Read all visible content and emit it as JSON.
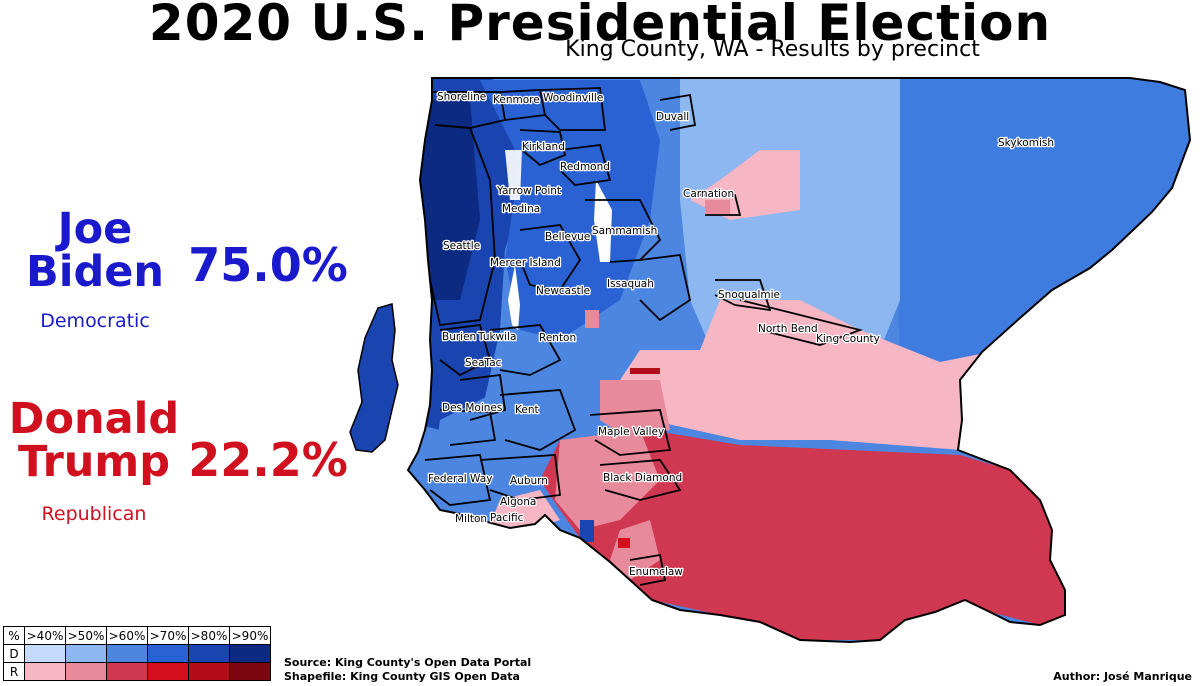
{
  "title": "2020 U.S. Presidential Election",
  "subtitle": "King County, WA - Results by precinct",
  "candidates": {
    "biden": {
      "name": "Joe Biden",
      "first": "Joe",
      "last": "Biden",
      "party": "Democratic",
      "pct": "75.0%",
      "color": "#1a1acc"
    },
    "trump": {
      "name": "Donald Trump",
      "first": "Donald",
      "last": "Trump",
      "party": "Republican",
      "pct": "22.2%",
      "color": "#d0101e"
    }
  },
  "places": [
    "Shoreline",
    "Kenmore",
    "Woodinville",
    "Duvall",
    "Kirkland",
    "Redmond",
    "Skykomish",
    "Carnation",
    "Yarrow Point",
    "Medina",
    "Seattle",
    "Sammamish",
    "Bellevue",
    "Mercer Island",
    "Issaquah",
    "Newcastle",
    "Snoqualmie",
    "North Bend",
    "King County",
    "Burien",
    "Tukwila",
    "Renton",
    "SeaTac",
    "Des Moines",
    "Kent",
    "Maple Valley",
    "Federal Way",
    "Auburn",
    "Black Diamond",
    "Algona",
    "Milton",
    "Pacific",
    "Enumclaw"
  ],
  "legend": {
    "header": "%",
    "thresholds": [
      ">40%",
      ">50%",
      ">60%",
      ">70%",
      ">80%",
      ">90%"
    ],
    "rows": [
      {
        "label": "D",
        "colors": [
          "#c6dbfb",
          "#8db7f0",
          "#4d86e0",
          "#2a62d4",
          "#1a45b0",
          "#0d2a82"
        ]
      },
      {
        "label": "R",
        "colors": [
          "#f6b6c4",
          "#e68a9c",
          "#cf3850",
          "#d40f1d",
          "#b30d1a",
          "#7d0610"
        ]
      }
    ]
  },
  "source_lines": [
    "Source: King County's Open Data Portal",
    "Shapefile: King County GIS Open Data"
  ],
  "author": "Author: José Manrique"
}
